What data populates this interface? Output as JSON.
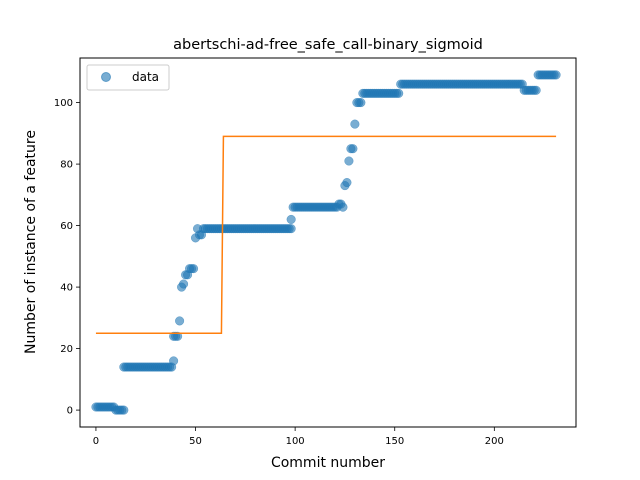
{
  "chart_data": {
    "type": "scatter",
    "title": "abertschi-ad-free_safe_call-binary_sigmoid",
    "xlabel": "Commit number",
    "ylabel": "Number of instance of a feature",
    "xlim": [
      -8,
      241
    ],
    "ylim": [
      -5.5,
      114.5
    ],
    "xticks": [
      0,
      50,
      100,
      150,
      200
    ],
    "yticks": [
      0,
      20,
      40,
      60,
      80,
      100
    ],
    "grid": false,
    "legend": {
      "placement": "upper-left",
      "entries": [
        "data"
      ]
    },
    "series": [
      {
        "name": "data",
        "kind": "scatter",
        "color": "#1f77b4",
        "segments": [
          {
            "x_from": 0,
            "x_to": 9,
            "y": 1
          },
          {
            "x_from": 10,
            "x_to": 14,
            "y": 0
          },
          {
            "x_from": 14,
            "x_to": 38,
            "y": 14
          },
          {
            "x_from": 54,
            "x_to": 98,
            "y": 59
          },
          {
            "x_from": 99,
            "x_to": 121,
            "y": 66
          },
          {
            "x_from": 134,
            "x_to": 152,
            "y": 103
          },
          {
            "x_from": 153,
            "x_to": 214,
            "y": 106
          },
          {
            "x_from": 215,
            "x_to": 221,
            "y": 104
          },
          {
            "x_from": 222,
            "x_to": 231,
            "y": 109
          }
        ],
        "points": [
          [
            39,
            16
          ],
          [
            39,
            24
          ],
          [
            40,
            24
          ],
          [
            41,
            24
          ],
          [
            42,
            29
          ],
          [
            43,
            40
          ],
          [
            44,
            41
          ],
          [
            45,
            44
          ],
          [
            46,
            44
          ],
          [
            47,
            46
          ],
          [
            48,
            46
          ],
          [
            49,
            46
          ],
          [
            50,
            56
          ],
          [
            51,
            59
          ],
          [
            52,
            57
          ],
          [
            53,
            57
          ],
          [
            98,
            62
          ],
          [
            122,
            67
          ],
          [
            123,
            67
          ],
          [
            124,
            66
          ],
          [
            125,
            73
          ],
          [
            126,
            74
          ],
          [
            127,
            81
          ],
          [
            128,
            85
          ],
          [
            129,
            85
          ],
          [
            130,
            93
          ],
          [
            131,
            100
          ],
          [
            132,
            100
          ],
          [
            133,
            100
          ]
        ]
      },
      {
        "name": "",
        "kind": "line",
        "color": "#ff7f0e",
        "points": [
          [
            0,
            25
          ],
          [
            63,
            25
          ],
          [
            64,
            89
          ],
          [
            231,
            89
          ]
        ]
      }
    ]
  }
}
